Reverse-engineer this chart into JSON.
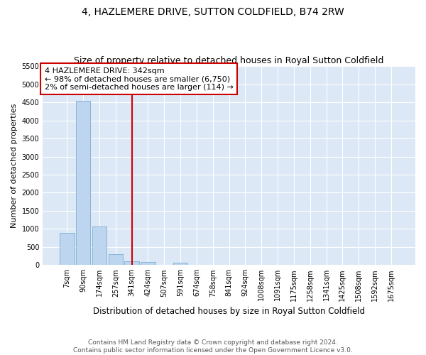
{
  "title": "4, HAZLEMERE DRIVE, SUTTON COLDFIELD, B74 2RW",
  "subtitle": "Size of property relative to detached houses in Royal Sutton Coldfield",
  "xlabel": "Distribution of detached houses by size in Royal Sutton Coldfield",
  "ylabel": "Number of detached properties",
  "footer_line1": "Contains HM Land Registry data © Crown copyright and database right 2024.",
  "footer_line2": "Contains public sector information licensed under the Open Government Licence v3.0.",
  "annotation_title": "4 HAZLEMERE DRIVE: 342sqm",
  "annotation_line1": "← 98% of detached houses are smaller (6,750)",
  "annotation_line2": "2% of semi-detached houses are larger (114) →",
  "bar_color": "#bdd5ee",
  "bar_edge_color": "#7aafd4",
  "vline_color": "#cc0000",
  "annotation_box_edge_color": "#cc0000",
  "background_color": "#dce8f5",
  "categories": [
    "7sqm",
    "90sqm",
    "174sqm",
    "257sqm",
    "341sqm",
    "424sqm",
    "507sqm",
    "591sqm",
    "674sqm",
    "758sqm",
    "841sqm",
    "924sqm",
    "1008sqm",
    "1091sqm",
    "1175sqm",
    "1258sqm",
    "1341sqm",
    "1425sqm",
    "1508sqm",
    "1592sqm",
    "1675sqm"
  ],
  "values": [
    880,
    4550,
    1060,
    310,
    100,
    75,
    0,
    70,
    0,
    0,
    0,
    0,
    0,
    0,
    0,
    0,
    0,
    0,
    0,
    0,
    0
  ],
  "ylim": [
    0,
    5500
  ],
  "yticks": [
    0,
    500,
    1000,
    1500,
    2000,
    2500,
    3000,
    3500,
    4000,
    4500,
    5000,
    5500
  ],
  "vline_x": 4,
  "title_fontsize": 10,
  "subtitle_fontsize": 9,
  "xlabel_fontsize": 8.5,
  "ylabel_fontsize": 8,
  "tick_fontsize": 7,
  "annotation_fontsize": 8,
  "footer_fontsize": 6.5
}
